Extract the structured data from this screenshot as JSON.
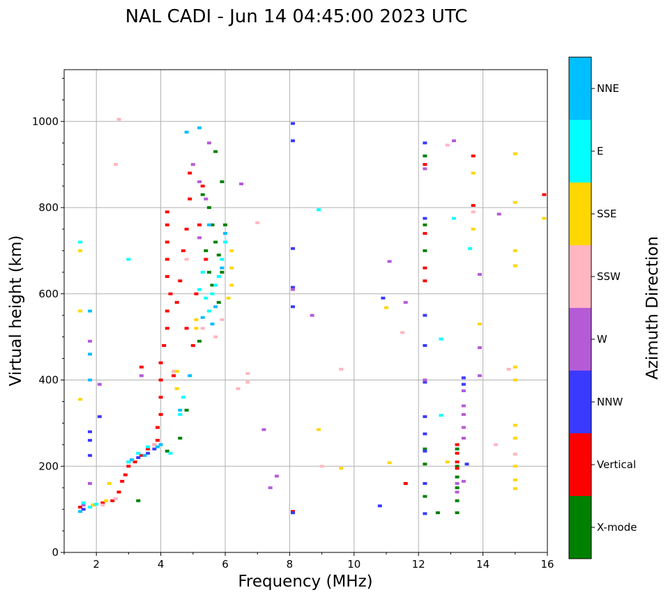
{
  "chart_data": {
    "type": "scatter",
    "title": "NAL CADI - Jun 14 04:45:00 2023 UTC",
    "xlabel": "Frequency (MHz)",
    "ylabel": "Virtual height (km)",
    "xlim": [
      1,
      16
    ],
    "ylim": [
      0,
      1120
    ],
    "xticks": [
      2,
      4,
      6,
      8,
      10,
      12,
      14,
      16
    ],
    "yticks": [
      0,
      200,
      400,
      600,
      800,
      1000
    ],
    "grid": true,
    "colorbar": {
      "label": "Azimuth Direction",
      "categories": [
        {
          "name": "X-mode",
          "color": "#008000"
        },
        {
          "name": "Vertical",
          "color": "#ff0000"
        },
        {
          "name": "NNW",
          "color": "#3a3aff"
        },
        {
          "name": "W",
          "color": "#b55bd6"
        },
        {
          "name": "SSW",
          "color": "#ffb6c1"
        },
        {
          "name": "SSE",
          "color": "#ffd700"
        },
        {
          "name": "E",
          "color": "#00ffff"
        },
        {
          "name": "NNE",
          "color": "#00bfff"
        }
      ]
    },
    "series": [
      {
        "name": "X-mode",
        "points": [
          [
            3.3,
            120
          ],
          [
            4.2,
            235
          ],
          [
            4.6,
            265
          ],
          [
            4.8,
            330
          ],
          [
            5.2,
            490
          ],
          [
            5.5,
            800
          ],
          [
            5.6,
            760
          ],
          [
            5.7,
            720
          ],
          [
            5.8,
            690
          ],
          [
            5.9,
            650
          ],
          [
            5.6,
            620
          ],
          [
            5.8,
            580
          ],
          [
            5.4,
            700
          ],
          [
            5.5,
            650
          ],
          [
            5.9,
            860
          ],
          [
            6.0,
            760
          ],
          [
            5.3,
            830
          ],
          [
            5.7,
            930
          ],
          [
            12.2,
            130
          ],
          [
            12.2,
            700
          ],
          [
            12.2,
            760
          ],
          [
            12.2,
            920
          ],
          [
            12.2,
            240
          ],
          [
            12.2,
            205
          ],
          [
            13.2,
            120
          ],
          [
            13.2,
            150
          ],
          [
            13.2,
            175
          ],
          [
            13.2,
            200
          ],
          [
            13.2,
            240
          ],
          [
            12.6,
            92
          ],
          [
            13.2,
            92
          ]
        ]
      },
      {
        "name": "Vertical",
        "points": [
          [
            1.5,
            105
          ],
          [
            1.9,
            110
          ],
          [
            2.2,
            115
          ],
          [
            2.5,
            120
          ],
          [
            2.7,
            140
          ],
          [
            2.8,
            165
          ],
          [
            2.9,
            180
          ],
          [
            3.0,
            200
          ],
          [
            3.2,
            210
          ],
          [
            3.4,
            225
          ],
          [
            3.6,
            240
          ],
          [
            3.8,
            250
          ],
          [
            3.9,
            260
          ],
          [
            3.9,
            290
          ],
          [
            4.0,
            320
          ],
          [
            4.0,
            360
          ],
          [
            4.0,
            400
          ],
          [
            4.0,
            440
          ],
          [
            4.1,
            480
          ],
          [
            4.2,
            520
          ],
          [
            4.2,
            560
          ],
          [
            4.3,
            600
          ],
          [
            4.2,
            640
          ],
          [
            4.2,
            680
          ],
          [
            4.2,
            720
          ],
          [
            4.2,
            760
          ],
          [
            4.2,
            790
          ],
          [
            4.5,
            580
          ],
          [
            4.6,
            630
          ],
          [
            4.7,
            700
          ],
          [
            4.8,
            750
          ],
          [
            4.9,
            820
          ],
          [
            4.9,
            880
          ],
          [
            4.8,
            520
          ],
          [
            5.0,
            480
          ],
          [
            5.1,
            600
          ],
          [
            5.2,
            760
          ],
          [
            5.3,
            850
          ],
          [
            5.4,
            680
          ],
          [
            4.4,
            410
          ],
          [
            3.4,
            430
          ],
          [
            12.2,
            900
          ],
          [
            12.2,
            740
          ],
          [
            12.2,
            630
          ],
          [
            12.2,
            660
          ],
          [
            13.7,
            920
          ],
          [
            13.7,
            805
          ],
          [
            15.9,
            830
          ],
          [
            13.2,
            210
          ],
          [
            13.2,
            250
          ],
          [
            13.2,
            195
          ],
          [
            13.2,
            230
          ],
          [
            8.1,
            95
          ],
          [
            11.6,
            160
          ]
        ]
      },
      {
        "name": "NNW",
        "points": [
          [
            1.6,
            100
          ],
          [
            1.8,
            260
          ],
          [
            1.8,
            225
          ],
          [
            1.8,
            280
          ],
          [
            2.1,
            315
          ],
          [
            3.0,
            210
          ],
          [
            3.3,
            220
          ],
          [
            3.6,
            230
          ],
          [
            3.8,
            240
          ],
          [
            8.1,
            995
          ],
          [
            8.1,
            955
          ],
          [
            8.1,
            705
          ],
          [
            8.1,
            615
          ],
          [
            8.1,
            570
          ],
          [
            8.1,
            92
          ],
          [
            10.9,
            590
          ],
          [
            10.8,
            108
          ],
          [
            12.2,
            950
          ],
          [
            12.2,
            775
          ],
          [
            12.2,
            550
          ],
          [
            12.2,
            480
          ],
          [
            12.2,
            395
          ],
          [
            12.2,
            315
          ],
          [
            12.2,
            275
          ],
          [
            12.2,
            235
          ],
          [
            12.2,
            160
          ],
          [
            12.2,
            90
          ],
          [
            13.4,
            405
          ],
          [
            13.4,
            390
          ],
          [
            13.5,
            205
          ]
        ]
      },
      {
        "name": "W",
        "points": [
          [
            1.6,
            110
          ],
          [
            1.8,
            490
          ],
          [
            1.8,
            160
          ],
          [
            2.1,
            390
          ],
          [
            3.4,
            410
          ],
          [
            5.0,
            900
          ],
          [
            5.2,
            860
          ],
          [
            5.5,
            950
          ],
          [
            5.4,
            820
          ],
          [
            5.2,
            730
          ],
          [
            6.5,
            855
          ],
          [
            8.1,
            610
          ],
          [
            8.7,
            550
          ],
          [
            11.6,
            580
          ],
          [
            12.2,
            890
          ],
          [
            12.2,
            400
          ],
          [
            13.1,
            955
          ],
          [
            13.4,
            375
          ],
          [
            13.4,
            340
          ],
          [
            13.4,
            320
          ],
          [
            13.4,
            290
          ],
          [
            13.4,
            265
          ],
          [
            13.4,
            165
          ],
          [
            13.2,
            140
          ],
          [
            13.2,
            160
          ],
          [
            13.9,
            645
          ],
          [
            13.9,
            475
          ],
          [
            13.9,
            410
          ],
          [
            14.5,
            785
          ],
          [
            11.1,
            675
          ],
          [
            7.4,
            150
          ],
          [
            7.6,
            177
          ],
          [
            7.2,
            285
          ]
        ]
      },
      {
        "name": "SSW",
        "points": [
          [
            2.2,
            110
          ],
          [
            2.6,
            125
          ],
          [
            2.7,
            1005
          ],
          [
            2.6,
            900
          ],
          [
            3.8,
            250
          ],
          [
            4.4,
            420
          ],
          [
            4.8,
            680
          ],
          [
            5.3,
            520
          ],
          [
            5.7,
            500
          ],
          [
            5.9,
            540
          ],
          [
            6.4,
            380
          ],
          [
            6.7,
            395
          ],
          [
            6.7,
            415
          ],
          [
            7.0,
            765
          ],
          [
            9.0,
            200
          ],
          [
            9.6,
            425
          ],
          [
            11.5,
            510
          ],
          [
            12.9,
            945
          ],
          [
            13.7,
            790
          ],
          [
            14.4,
            250
          ],
          [
            14.8,
            425
          ],
          [
            15.0,
            228
          ]
        ]
      },
      {
        "name": "SSE",
        "points": [
          [
            1.5,
            700
          ],
          [
            1.5,
            560
          ],
          [
            1.5,
            355
          ],
          [
            1.9,
            110
          ],
          [
            2.3,
            120
          ],
          [
            2.4,
            160
          ],
          [
            4.5,
            420
          ],
          [
            4.5,
            380
          ],
          [
            5.1,
            520
          ],
          [
            5.1,
            540
          ],
          [
            6.1,
            590
          ],
          [
            6.2,
            620
          ],
          [
            6.2,
            660
          ],
          [
            6.2,
            700
          ],
          [
            8.9,
            285
          ],
          [
            9.6,
            195
          ],
          [
            11.1,
            208
          ],
          [
            11.0,
            568
          ],
          [
            12.9,
            210
          ],
          [
            13.7,
            880
          ],
          [
            13.7,
            750
          ],
          [
            13.9,
            530
          ],
          [
            15.0,
            925
          ],
          [
            15.0,
            812
          ],
          [
            15.0,
            700
          ],
          [
            15.0,
            665
          ],
          [
            15.0,
            430
          ],
          [
            15.0,
            400
          ],
          [
            15.0,
            295
          ],
          [
            15.0,
            265
          ],
          [
            15.0,
            200
          ],
          [
            15.0,
            168
          ],
          [
            15.0,
            148
          ],
          [
            15.9,
            775
          ]
        ]
      },
      {
        "name": "E",
        "points": [
          [
            1.5,
            720
          ],
          [
            1.6,
            115
          ],
          [
            1.8,
            105
          ],
          [
            2.0,
            112
          ],
          [
            3.0,
            210
          ],
          [
            3.3,
            230
          ],
          [
            3.6,
            245
          ],
          [
            4.3,
            230
          ],
          [
            4.6,
            320
          ],
          [
            4.7,
            360
          ],
          [
            5.2,
            610
          ],
          [
            5.3,
            650
          ],
          [
            5.4,
            590
          ],
          [
            5.5,
            560
          ],
          [
            5.6,
            600
          ],
          [
            5.8,
            640
          ],
          [
            6.0,
            720
          ],
          [
            5.9,
            680
          ],
          [
            5.7,
            620
          ],
          [
            3.0,
            680
          ],
          [
            8.9,
            795
          ],
          [
            12.7,
            495
          ],
          [
            12.7,
            318
          ],
          [
            13.1,
            775
          ],
          [
            13.6,
            705
          ]
        ]
      },
      {
        "name": "NNE",
        "points": [
          [
            1.5,
            95
          ],
          [
            1.8,
            560
          ],
          [
            1.8,
            400
          ],
          [
            1.8,
            460
          ],
          [
            3.1,
            215
          ],
          [
            3.5,
            225
          ],
          [
            3.9,
            245
          ],
          [
            4.0,
            250
          ],
          [
            4.6,
            330
          ],
          [
            4.8,
            975
          ],
          [
            5.2,
            985
          ],
          [
            5.3,
            545
          ],
          [
            5.6,
            530
          ],
          [
            5.7,
            570
          ],
          [
            5.9,
            660
          ],
          [
            6.0,
            740
          ],
          [
            5.5,
            760
          ],
          [
            4.9,
            410
          ]
        ]
      }
    ]
  }
}
